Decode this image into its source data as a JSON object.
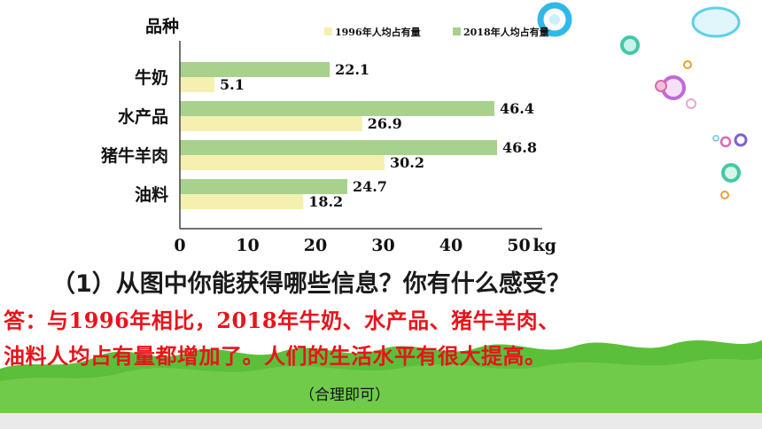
{
  "chart_data": {
    "type": "bar",
    "orientation": "horizontal",
    "ylabel": "品种",
    "xunit": "kg",
    "categories": [
      "牛奶",
      "水产品",
      "猪牛羊肉",
      "油料"
    ],
    "series": [
      {
        "name": "2018年人均占有量",
        "values": [
          22.1,
          46.4,
          46.8,
          24.7
        ],
        "color": "#a9d18e"
      },
      {
        "name": "1996年人均占有量",
        "values": [
          5.1,
          26.9,
          30.2,
          18.2
        ],
        "color": "#f5f0b0"
      }
    ],
    "legend_order": [
      "1996年人均占有量",
      "2018年人均占有量"
    ],
    "legend_position": "top",
    "xlim": [
      0,
      50
    ],
    "xticks": [
      "0",
      "10",
      "20",
      "30",
      "40",
      "50"
    ],
    "grid": false
  },
  "question": "（1）从图中你能获得哪些信息？你有什么感受？",
  "answer_line1": "答：与1996年相比，2018年牛奶、水产品、猪牛羊肉、",
  "answer_line2": "油料人均占有量都增加了。人们的生活水平有很大提高。",
  "note": "（合理即可）"
}
